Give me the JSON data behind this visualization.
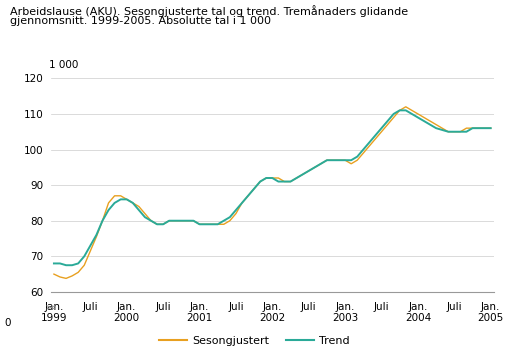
{
  "title_line1": "Arbeidslause (AKU). Sesongjusterte tal og trend. Tremånaders glidande",
  "title_line2": "gjennomsnitt. 1999-2005. Absolutte tal i 1 000",
  "ylabel": "1 000",
  "ylim": [
    60,
    120
  ],
  "yticks": [
    60,
    70,
    80,
    90,
    100,
    110,
    120
  ],
  "xlabel_ticks": [
    "Jan.\n1999",
    "Juli",
    "Jan.\n2000",
    "Juli",
    "Jan.\n2001",
    "Juli",
    "Jan.\n2002",
    "Juli",
    "Jan.\n2003",
    "Juli",
    "Jan.\n2004",
    "Juli",
    "Jan.\n2005"
  ],
  "legend_labels": [
    "Sesongjustert",
    "Trend"
  ],
  "line_color_seasonal": "#e8a020",
  "line_color_trend": "#2aaa98",
  "seasonal": [
    65.0,
    64.2,
    63.8,
    64.5,
    65.5,
    67.5,
    71.5,
    75.5,
    80.0,
    85.0,
    87.0,
    87.0,
    86.0,
    85.0,
    84.0,
    82.0,
    80.0,
    79.0,
    79.0,
    80.0,
    80.0,
    80.0,
    80.0,
    80.0,
    79.0,
    79.0,
    79.0,
    79.0,
    79.0,
    80.0,
    82.0,
    85.0,
    87.0,
    89.0,
    91.0,
    92.0,
    92.0,
    92.0,
    91.0,
    91.0,
    92.0,
    93.0,
    94.0,
    95.0,
    96.0,
    97.0,
    97.0,
    97.0,
    97.0,
    96.0,
    97.0,
    99.0,
    101.0,
    103.0,
    105.0,
    107.0,
    109.0,
    111.0,
    112.0,
    111.0,
    110.0,
    109.0,
    108.0,
    107.0,
    106.0,
    105.0,
    105.0,
    105.0,
    106.0,
    106.0,
    106.0,
    106.0,
    106.0
  ],
  "trend": [
    68.0,
    68.0,
    67.5,
    67.5,
    68.0,
    70.0,
    73.0,
    76.0,
    80.0,
    83.0,
    85.0,
    86.0,
    86.0,
    85.0,
    83.0,
    81.0,
    80.0,
    79.0,
    79.0,
    80.0,
    80.0,
    80.0,
    80.0,
    80.0,
    79.0,
    79.0,
    79.0,
    79.0,
    80.0,
    81.0,
    83.0,
    85.0,
    87.0,
    89.0,
    91.0,
    92.0,
    92.0,
    91.0,
    91.0,
    91.0,
    92.0,
    93.0,
    94.0,
    95.0,
    96.0,
    97.0,
    97.0,
    97.0,
    97.0,
    97.0,
    98.0,
    100.0,
    102.0,
    104.0,
    106.0,
    108.0,
    110.0,
    111.0,
    111.0,
    110.0,
    109.0,
    108.0,
    107.0,
    106.0,
    105.5,
    105.0,
    105.0,
    105.0,
    105.0,
    106.0,
    106.0,
    106.0,
    106.0
  ]
}
